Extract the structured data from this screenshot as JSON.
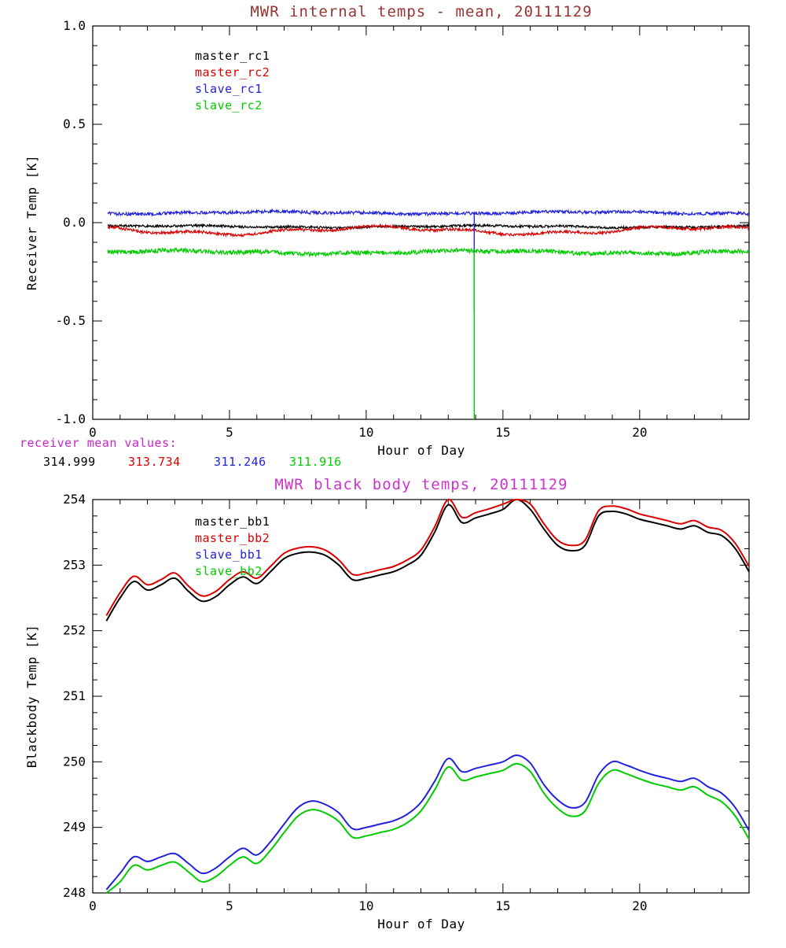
{
  "mean_values": {
    "label": "receiver mean values:",
    "label_color": "#cc22cc",
    "values": [
      {
        "text": "314.999",
        "color": "#000000"
      },
      {
        "text": "313.734",
        "color": "#dd0000"
      },
      {
        "text": "311.246",
        "color": "#2222dd"
      },
      {
        "text": "311.916",
        "color": "#00cc00"
      }
    ]
  },
  "chart_data": [
    {
      "type": "line",
      "title": "MWR internal temps - mean, 20111129",
      "title_color": "#993333",
      "xlabel": "Hour of Day",
      "ylabel": "Receiver Temp [K]",
      "xlim": [
        0,
        24
      ],
      "ylim": [
        -1.0,
        1.0
      ],
      "xticks": [
        0,
        5,
        10,
        15,
        20
      ],
      "xtick_labels": [
        "0",
        "5",
        "10",
        "15",
        "20"
      ],
      "x_minor": 1,
      "yticks": [
        -1.0,
        -0.5,
        0.0,
        0.5,
        1.0
      ],
      "ytick_labels": [
        "-1.0",
        "-0.5",
        "0.0",
        "0.5",
        "1.0"
      ],
      "y_minor": 0.1,
      "grid": false,
      "legend_position": "upper-left-inside",
      "series": [
        {
          "name": "master_rc1",
          "color": "#000000",
          "mean_value": 314.999,
          "base": -0.02,
          "noise": 0.006,
          "wobble": 0.004,
          "spike": null
        },
        {
          "name": "master_rc2",
          "color": "#dd0000",
          "mean_value": 313.734,
          "base": -0.04,
          "noise": 0.007,
          "wobble": 0.016,
          "spike": null
        },
        {
          "name": "slave_rc1",
          "color": "#2222dd",
          "mean_value": 311.246,
          "base": 0.05,
          "noise": 0.008,
          "wobble": 0.005,
          "spike": {
            "x": 13.95,
            "y": -0.45
          }
        },
        {
          "name": "slave_rc2",
          "color": "#00cc00",
          "mean_value": 311.916,
          "base": -0.15,
          "noise": 0.011,
          "wobble": 0.007,
          "spike": {
            "x": 13.95,
            "y": -1.0
          }
        }
      ]
    },
    {
      "type": "line",
      "title": "MWR black body temps, 20111129",
      "title_color": "#cc33cc",
      "xlabel": "Hour of Day",
      "ylabel": "Blackbody Temp [K]",
      "xlim": [
        0,
        24
      ],
      "ylim": [
        248,
        254
      ],
      "xticks": [
        0,
        5,
        10,
        15,
        20
      ],
      "xtick_labels": [
        "0",
        "5",
        "10",
        "15",
        "20"
      ],
      "x_minor": 1,
      "yticks": [
        248,
        249,
        250,
        251,
        252,
        253,
        254
      ],
      "ytick_labels": [
        "248",
        "249",
        "250",
        "251",
        "252",
        "253",
        "254"
      ],
      "y_minor": 0.25,
      "grid": false,
      "legend_position": "upper-left-inside",
      "x": [
        0.5,
        1.0,
        1.5,
        2.0,
        2.5,
        3.0,
        3.5,
        4.0,
        4.5,
        5.0,
        5.5,
        6.0,
        6.5,
        7.0,
        7.5,
        8.0,
        8.5,
        9.0,
        9.5,
        10.0,
        10.5,
        11.0,
        11.5,
        12.0,
        12.5,
        13.0,
        13.5,
        14.0,
        14.5,
        15.0,
        15.5,
        16.0,
        16.5,
        17.0,
        17.5,
        18.0,
        18.5,
        19.0,
        19.5,
        20.0,
        20.5,
        21.0,
        21.5,
        22.0,
        22.5,
        23.0,
        23.5,
        24.0
      ],
      "series": [
        {
          "name": "master_bb1",
          "color": "#000000",
          "values": [
            252.15,
            252.5,
            252.75,
            252.62,
            252.7,
            252.8,
            252.6,
            252.45,
            252.52,
            252.7,
            252.82,
            252.72,
            252.9,
            253.1,
            253.18,
            253.2,
            253.15,
            253.0,
            252.78,
            252.8,
            252.85,
            252.9,
            253.0,
            253.15,
            253.5,
            253.92,
            253.65,
            253.72,
            253.78,
            253.85,
            254.0,
            253.85,
            253.55,
            253.3,
            253.22,
            253.3,
            253.75,
            253.82,
            253.78,
            253.7,
            253.65,
            253.6,
            253.55,
            253.6,
            253.5,
            253.45,
            253.25,
            252.9
          ]
        },
        {
          "name": "master_bb2",
          "color": "#dd0000",
          "values": [
            252.23,
            252.58,
            252.83,
            252.7,
            252.78,
            252.88,
            252.68,
            252.53,
            252.6,
            252.78,
            252.9,
            252.8,
            252.98,
            253.18,
            253.26,
            253.28,
            253.23,
            253.08,
            252.86,
            252.88,
            252.93,
            252.98,
            253.08,
            253.23,
            253.58,
            254.0,
            253.73,
            253.8,
            253.86,
            253.93,
            254.05,
            253.93,
            253.63,
            253.38,
            253.3,
            253.38,
            253.83,
            253.9,
            253.86,
            253.78,
            253.73,
            253.68,
            253.63,
            253.68,
            253.58,
            253.53,
            253.33,
            252.98
          ]
        },
        {
          "name": "slave_bb1",
          "color": "#2222dd",
          "values": [
            248.05,
            248.3,
            248.55,
            248.48,
            248.55,
            248.6,
            248.45,
            248.3,
            248.38,
            248.55,
            248.68,
            248.58,
            248.78,
            249.05,
            249.3,
            249.4,
            249.35,
            249.22,
            248.98,
            249.0,
            249.05,
            249.1,
            249.2,
            249.38,
            249.7,
            250.05,
            249.85,
            249.9,
            249.95,
            250.0,
            250.1,
            249.98,
            249.65,
            249.42,
            249.3,
            249.38,
            249.8,
            250.0,
            249.95,
            249.87,
            249.8,
            249.75,
            249.7,
            249.75,
            249.62,
            249.52,
            249.3,
            248.95
          ]
        },
        {
          "name": "slave_bb2",
          "color": "#00cc00",
          "values": [
            247.92,
            248.17,
            248.42,
            248.35,
            248.42,
            248.47,
            248.32,
            248.17,
            248.25,
            248.42,
            248.55,
            248.45,
            248.65,
            248.92,
            249.17,
            249.27,
            249.22,
            249.09,
            248.85,
            248.87,
            248.92,
            248.97,
            249.07,
            249.25,
            249.57,
            249.92,
            249.72,
            249.77,
            249.82,
            249.87,
            249.97,
            249.85,
            249.52,
            249.29,
            249.17,
            249.25,
            249.67,
            249.87,
            249.82,
            249.74,
            249.67,
            249.62,
            249.57,
            249.62,
            249.49,
            249.39,
            249.17,
            248.82
          ]
        }
      ]
    }
  ]
}
